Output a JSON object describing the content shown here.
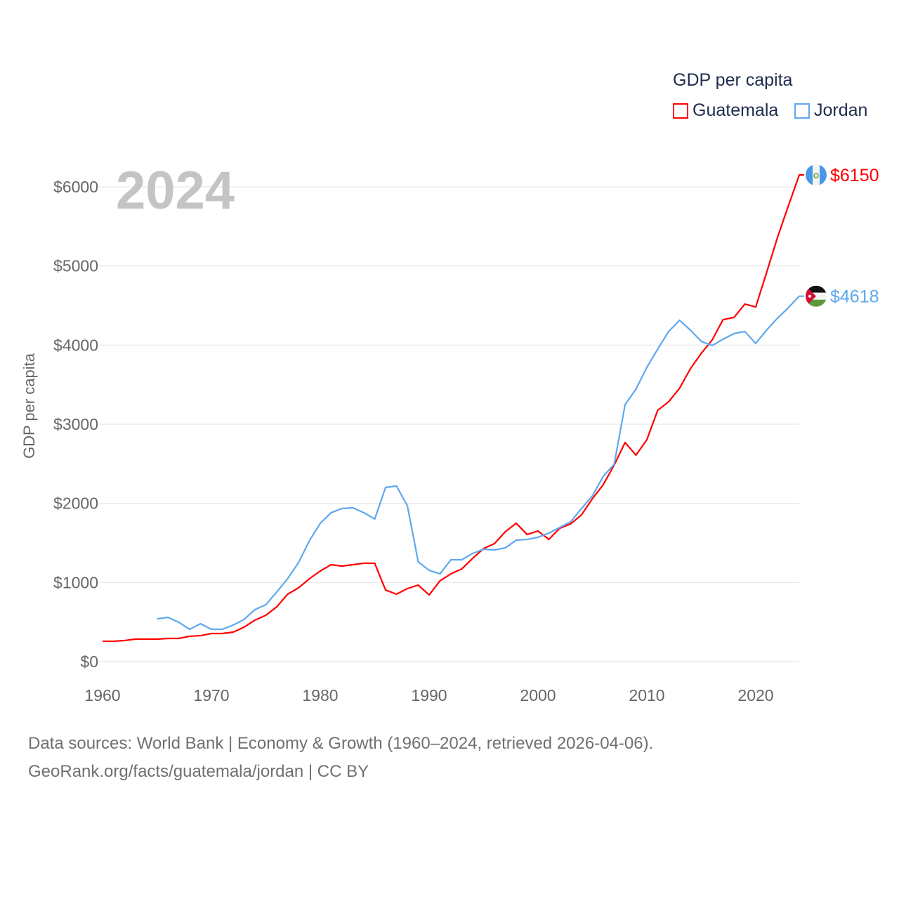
{
  "chart_data": {
    "type": "line",
    "title": "GDP per capita",
    "current_year": "2024",
    "xlabel": "",
    "ylabel": "GDP per capita",
    "xlim": [
      1960,
      2024
    ],
    "ylim": [
      0,
      6000
    ],
    "x_ticks": [
      1960,
      1970,
      1980,
      1990,
      2000,
      2010,
      2020
    ],
    "x_tick_labels": [
      "1960",
      "1970",
      "1980",
      "1990",
      "2000",
      "2010",
      "2020"
    ],
    "y_ticks": [
      0,
      1000,
      2000,
      3000,
      4000,
      5000,
      6000
    ],
    "y_tick_labels": [
      "$0",
      "$1000",
      "$2000",
      "$3000",
      "$4000",
      "$5000",
      "$6000"
    ],
    "grid": true,
    "legend_placement": "top-right",
    "series": [
      {
        "name": "Guatemala",
        "color": "#ff0000",
        "end_label": "$6150",
        "start_year": 1960,
        "values": [
          257,
          257,
          266,
          284,
          284,
          284,
          293,
          293,
          320,
          328,
          355,
          355,
          373,
          435,
          524,
          586,
          692,
          852,
          932,
          1047,
          1145,
          1225,
          1207,
          1225,
          1243,
          1243,
          905,
          852,
          923,
          967,
          843,
          1021,
          1109,
          1172,
          1305,
          1429,
          1491,
          1642,
          1748,
          1606,
          1651,
          1544,
          1686,
          1740,
          1855,
          2059,
          2237,
          2485,
          2769,
          2609,
          2805,
          3177,
          3284,
          3453,
          3701,
          3896,
          4065,
          4322,
          4349,
          4518,
          4482,
          4917,
          5361,
          5760,
          6150
        ]
      },
      {
        "name": "Jordan",
        "color": "#5ea8ee",
        "end_label": "$4618",
        "start_year": 1965,
        "values": [
          541,
          559,
          497,
          408,
          479,
          408,
          408,
          462,
          533,
          657,
          719,
          879,
          1047,
          1251,
          1527,
          1748,
          1882,
          1935,
          1944,
          1882,
          1802,
          2201,
          2219,
          1970,
          1260,
          1154,
          1109,
          1287,
          1287,
          1367,
          1420,
          1411,
          1438,
          1535,
          1544,
          1571,
          1624,
          1695,
          1766,
          1935,
          2095,
          2343,
          2494,
          3248,
          3444,
          3719,
          3950,
          4172,
          4314,
          4189,
          4047,
          3994,
          4074,
          4145,
          4172,
          4021,
          4189,
          4340,
          4473,
          4618
        ]
      }
    ]
  },
  "footer": {
    "line1": "Data sources: World Bank | Economy & Growth (1960–2024, retrieved 2026-04-06).",
    "line2": "GeoRank.org/facts/guatemala/jordan | CC BY"
  }
}
